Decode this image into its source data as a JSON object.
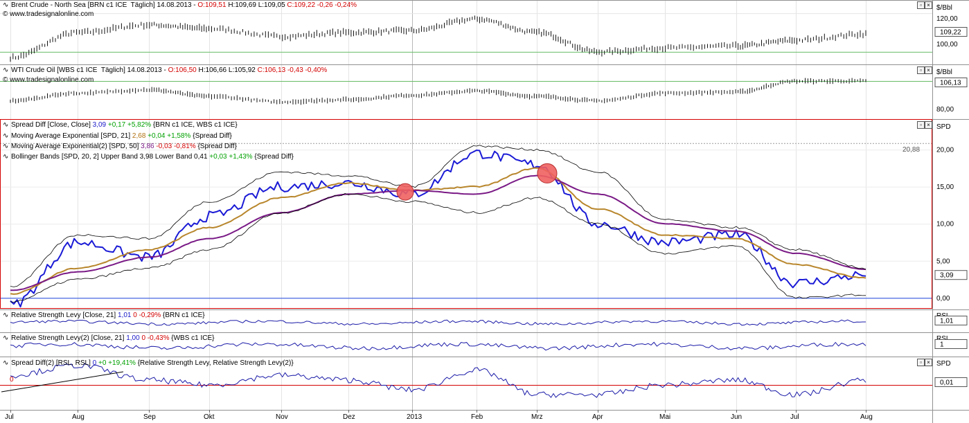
{
  "panels": {
    "brent": {
      "title": "Brent Crude - North Sea [BRN c1 ICE  Täglich] 14.08.2013 - ",
      "o": "O:109,51",
      "h": "H:109,69",
      "l": "L:109,05",
      "c": "C:109,22 -0,26 -0,24%",
      "source": "© www.tradesignalonline.com",
      "unit": "$/Bbl",
      "ticks": [
        "120,00",
        "100,00"
      ],
      "last": "109,22"
    },
    "wti": {
      "title": "WTI Crude Oil [WBS c1 ICE  Täglich] 14.08.2013 - ",
      "o": "O:106,50",
      "h": "H:106,66",
      "l": "L:105,92",
      "c": "C:106,13 -0,43 -0,40%",
      "source": "© www.tradesignalonline.com",
      "unit": "$/Bbl",
      "ticks": [
        "80,00"
      ],
      "last": "106,13"
    },
    "spread": {
      "unit": "SPD",
      "ticks": [
        "20,00",
        "15,00",
        "10,00",
        "5,00",
        "0,00"
      ],
      "last": "3,09",
      "max_label": "20,88",
      "legend": [
        {
          "name": "Spread Diff [Close, Close] ",
          "v": "3,09",
          "chg": " +0,17 +5,82%",
          "tail": " {BRN c1 ICE, WBS c1 ICE}"
        },
        {
          "name": "Moving Average Exponential [SPD, 21] ",
          "v": "2,68",
          "chg": " +0,04 +1,58%",
          "tail": " {Spread Diff}"
        },
        {
          "name": "Moving Average Exponential(2) [SPD, 50] ",
          "v": "3,86",
          "chg": " -0,03 -0,81%",
          "tail": " {Spread Diff}"
        },
        {
          "name": "Bollinger Bands [SPD, 20, 2] Upper Band 3,98 Lower Band 0,41",
          "v": "",
          "chg": " +0,03 +1,43%",
          "tail": " {Spread Diff}"
        }
      ]
    },
    "rsl1": {
      "name": "Relative Strength Levy [Close, 21] ",
      "v": "1,01",
      "z": " 0",
      "chg": " -0,29%",
      "tail": " {BRN c1 ICE}",
      "unit": "RSL",
      "last": "1,01"
    },
    "rsl2": {
      "name": "Relative Strength Levy(2) [Close, 21] ",
      "v": "1,00",
      "z": " 0",
      "chg": " -0,43%",
      "tail": " {WBS c1 ICE}",
      "unit": "RSL",
      "last": "1"
    },
    "rsldiff": {
      "name": "Spread Diff(2) [RSL, RSL] ",
      "v": "0",
      "chg": " +0 +19,41%",
      "tail": " {Relative Strength Levy, Relative Strength Levy(2)}",
      "unit": "SPD",
      "last": "0,01",
      "zero_label": "0"
    }
  },
  "x_axis": [
    "Jul",
    "Aug",
    "Sep",
    "Okt",
    "Nov",
    "Dez",
    "2013",
    "Feb",
    "Mrz",
    "Apr",
    "Mai",
    "Jun",
    "Jul",
    "Aug"
  ],
  "window_buttons": {
    "restore": "▫",
    "close": "×"
  },
  "colors": {
    "spread": "#1a1ad6",
    "ema21": "#b8862c",
    "ema50": "#7a1a86",
    "bands": "#000000",
    "rsl": "#1a1aa8",
    "zero": "#3355dd",
    "ref": "#d40000",
    "cross": "#f06060"
  },
  "chart_data": [
    {
      "type": "line",
      "title": "Spread Diff [Close, Close]",
      "x": [
        "Jul",
        "Aug",
        "Sep",
        "Okt",
        "Nov",
        "Dez",
        "2013",
        "Feb",
        "Mrz",
        "Apr",
        "Mai",
        "Jun",
        "Jul",
        "Aug"
      ],
      "ylim": [
        -1,
        23
      ],
      "series": [
        {
          "name": "Spread Diff",
          "values": [
            -1.0,
            7.5,
            5.5,
            11.0,
            15.0,
            15.5,
            14.0,
            19.5,
            18.0,
            10.0,
            7.5,
            8.5,
            2.0,
            3.09
          ]
        },
        {
          "name": "Moving Average Exponential [SPD, 21]",
          "values": [
            0.5,
            4.0,
            6.5,
            9.5,
            13.5,
            15.5,
            14.5,
            15.0,
            17.5,
            12.0,
            8.5,
            8.0,
            4.5,
            2.68
          ]
        },
        {
          "name": "Moving Average Exponential(2) [SPD, 50]",
          "values": [
            1.0,
            3.5,
            5.5,
            8.0,
            11.5,
            14.0,
            14.5,
            14.0,
            16.5,
            14.0,
            10.0,
            9.0,
            6.0,
            3.86
          ]
        },
        {
          "name": "Upper Band",
          "values": [
            1.5,
            8.5,
            8.0,
            13.0,
            17.0,
            16.5,
            15.0,
            20.5,
            20.0,
            17.0,
            10.5,
            9.5,
            6.5,
            3.98
          ]
        },
        {
          "name": "Lower Band",
          "values": [
            -0.5,
            2.5,
            4.0,
            6.5,
            11.5,
            14.0,
            13.0,
            11.5,
            13.5,
            10.0,
            6.0,
            7.0,
            0.0,
            0.41
          ]
        }
      ],
      "markers": [
        {
          "x": "2013",
          "y": 14.3
        },
        {
          "x": "Mrz",
          "y": 16.8
        }
      ]
    },
    {
      "type": "line",
      "title": "Brent Crude - North Sea",
      "x": [
        "Jul",
        "Aug",
        "Sep",
        "Okt",
        "Nov",
        "Dez",
        "2013",
        "Feb",
        "Mrz",
        "Apr",
        "Mai",
        "Jun",
        "Jul",
        "Aug"
      ],
      "ylim": [
        96,
        124
      ],
      "series": [
        {
          "name": "Brent Crude",
          "values": [
            97,
            110,
            114,
            112,
            108,
            110,
            111,
            117,
            110,
            100,
            102,
            103,
            106,
            109.22
          ]
        }
      ]
    },
    {
      "type": "line",
      "title": "WTI Crude Oil",
      "x": [
        "Jul",
        "Aug",
        "Sep",
        "Okt",
        "Nov",
        "Dez",
        "2013",
        "Feb",
        "Mrz",
        "Apr",
        "Mai",
        "Jun",
        "Jul",
        "Aug"
      ],
      "ylim": [
        75,
        115
      ],
      "series": [
        {
          "name": "WTI Crude Oil",
          "values": [
            88,
            95,
            98,
            92,
            87,
            89,
            93,
            97,
            92,
            88,
            95,
            96,
            106,
            106.13
          ]
        }
      ]
    },
    {
      "type": "line",
      "title": "Spread Diff(2) [RSL, RSL]",
      "x": [
        "Jul",
        "Aug",
        "Sep",
        "Okt",
        "Nov",
        "Dez",
        "2013",
        "Feb",
        "Mrz",
        "Apr",
        "Mai",
        "Jun",
        "Jul",
        "Aug"
      ],
      "series": [
        {
          "name": "Spread Diff(2)",
          "values": [
            0.02,
            0.04,
            0.01,
            0.0,
            0.02,
            0.01,
            -0.01,
            0.03,
            -0.02,
            -0.02,
            0.0,
            0.01,
            -0.02,
            0.01
          ]
        }
      ]
    }
  ]
}
